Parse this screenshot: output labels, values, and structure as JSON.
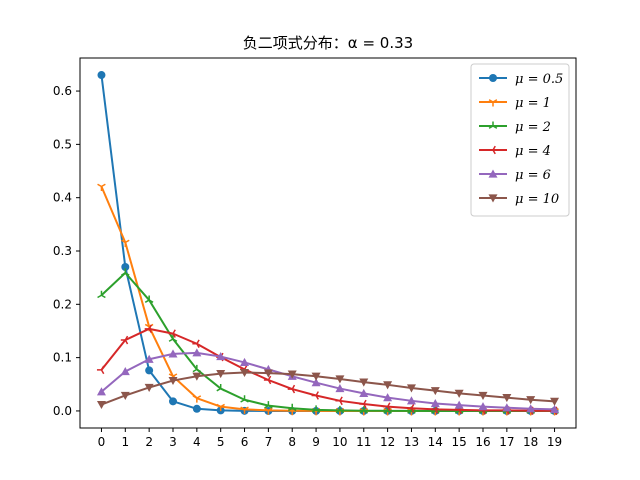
{
  "chart_data": {
    "type": "line",
    "title": "负二项式分布：α = 0.33",
    "xlabel": "",
    "ylabel": "",
    "x": [
      0,
      1,
      2,
      3,
      4,
      5,
      6,
      7,
      8,
      9,
      10,
      11,
      12,
      13,
      14,
      15,
      16,
      17,
      18,
      19
    ],
    "xlim": [
      -0.9,
      19.9
    ],
    "ylim": [
      -0.032,
      0.662
    ],
    "yticks": [
      0.0,
      0.1,
      0.2,
      0.3,
      0.4,
      0.5,
      0.6
    ],
    "ytick_labels": [
      "0.0",
      "0.1",
      "0.2",
      "0.3",
      "0.4",
      "0.5",
      "0.6"
    ],
    "grid": false,
    "legend_position": "top-right",
    "series": [
      {
        "name": "μ = 0.5",
        "color": "#1f77b4",
        "marker": "circle",
        "values": [
          0.63,
          0.27,
          0.076,
          0.018,
          0.004,
          0.001,
          0.0002,
          0.0,
          0.0,
          0.0,
          0.0,
          0.0,
          0.0,
          0.0,
          0.0,
          0.0,
          0.0,
          0.0,
          0.0,
          0.0
        ]
      },
      {
        "name": "μ = 1",
        "color": "#ff7f0e",
        "marker": "tri_down",
        "values": [
          0.421,
          0.316,
          0.158,
          0.065,
          0.024,
          0.008,
          0.003,
          0.001,
          0.0003,
          0.0001,
          0.0,
          0.0,
          0.0,
          0.0,
          0.0,
          0.0,
          0.0,
          0.0,
          0.0,
          0.0
        ]
      },
      {
        "name": "μ = 2",
        "color": "#2ca02c",
        "marker": "tri_up",
        "values": [
          0.217,
          0.259,
          0.208,
          0.135,
          0.078,
          0.042,
          0.021,
          0.01,
          0.005,
          0.002,
          0.001,
          0.0004,
          0.0002,
          0.0001,
          0.0,
          0.0,
          0.0,
          0.0,
          0.0,
          0.0
        ]
      },
      {
        "name": "μ = 4",
        "color": "#d62728",
        "marker": "tri_left",
        "values": [
          0.077,
          0.133,
          0.154,
          0.145,
          0.126,
          0.101,
          0.078,
          0.058,
          0.041,
          0.029,
          0.019,
          0.013,
          0.008,
          0.005,
          0.003,
          0.002,
          0.001,
          0.001,
          0.0004,
          0.0003
        ]
      },
      {
        "name": "μ = 6",
        "color": "#9467bd",
        "marker": "triangle_up",
        "values": [
          0.036,
          0.074,
          0.097,
          0.107,
          0.109,
          0.102,
          0.091,
          0.078,
          0.065,
          0.053,
          0.042,
          0.033,
          0.025,
          0.019,
          0.014,
          0.011,
          0.008,
          0.006,
          0.004,
          0.003
        ]
      },
      {
        "name": "μ = 10",
        "color": "#8c564b",
        "marker": "triangle_down",
        "values": [
          0.012,
          0.029,
          0.044,
          0.057,
          0.065,
          0.07,
          0.072,
          0.071,
          0.069,
          0.065,
          0.06,
          0.054,
          0.049,
          0.043,
          0.038,
          0.033,
          0.029,
          0.025,
          0.021,
          0.018
        ]
      }
    ]
  }
}
